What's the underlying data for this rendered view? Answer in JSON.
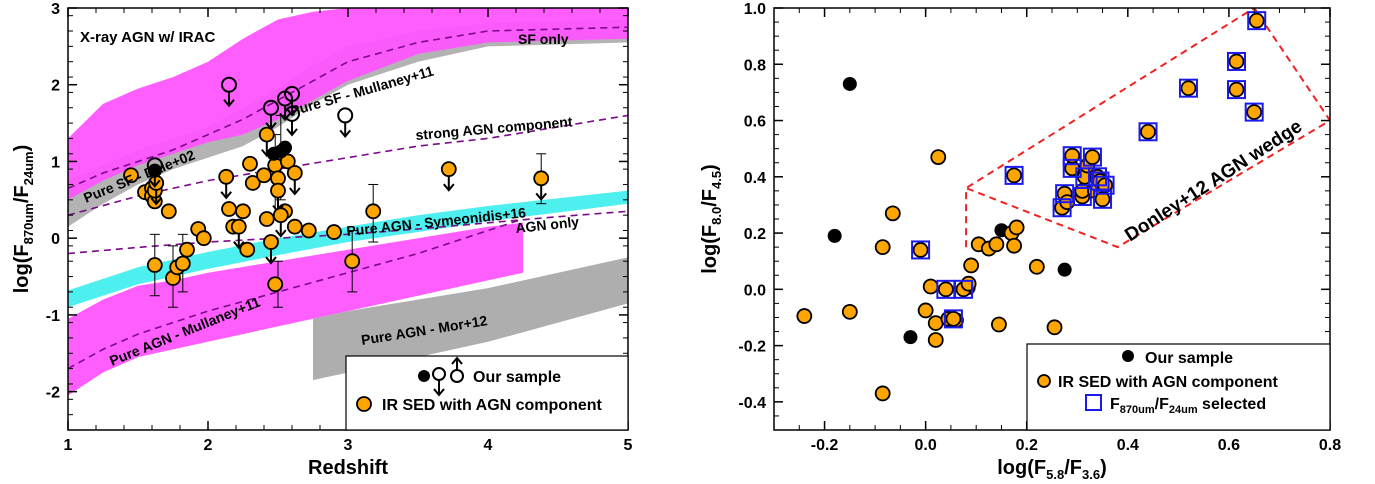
{
  "chart_data": [
    {
      "type": "scatter",
      "panel_label": "X-ray AGN w/ IRAC",
      "xlabel_main": "Redshift",
      "ylabel": {
        "main": "log(F",
        "sub1": "870um",
        "mid": "/F",
        "sub2": "24um",
        "end": ")"
      },
      "xlim": [
        1,
        5
      ],
      "ylim": [
        -2.5,
        3
      ],
      "xticks": [
        "1",
        "2",
        "3",
        "4",
        "5"
      ],
      "yticks": [
        "-2",
        "-1",
        "0",
        "1",
        "2",
        "3"
      ],
      "templates": [
        {
          "name": "Pure SF - Mullaney+11",
          "color": "#ff55ff",
          "z": [
            1.0,
            1.25,
            1.5,
            1.75,
            2.0,
            2.25,
            2.5,
            2.75,
            3.0,
            3.5,
            4.0,
            5.0
          ],
          "lo": [
            0.5,
            0.75,
            0.95,
            1.1,
            1.25,
            1.35,
            1.55,
            1.8,
            2.05,
            2.4,
            2.55,
            2.6
          ],
          "hi": [
            1.3,
            1.75,
            1.95,
            2.1,
            2.3,
            2.6,
            2.85,
            2.95,
            3.0,
            3.0,
            3.0,
            3.0
          ],
          "mid": [
            0.65,
            0.85,
            1.0,
            1.15,
            1.35,
            1.55,
            1.8,
            2.05,
            2.3,
            2.55,
            2.7,
            2.75
          ]
        },
        {
          "name": "Pure SF - Dale+02",
          "color": "#999999",
          "z": [
            1.0,
            1.25,
            1.5,
            1.75,
            2.0,
            2.25,
            2.5,
            2.75,
            3.0,
            3.5,
            4.0,
            5.0
          ],
          "lo": [
            0.15,
            0.45,
            0.7,
            0.9,
            1.05,
            1.2,
            1.45,
            1.75,
            2.0,
            2.3,
            2.5,
            2.55
          ],
          "hi": [
            0.75,
            0.95,
            1.15,
            1.3,
            1.45,
            1.7,
            1.95,
            2.25,
            2.5,
            2.7,
            2.8,
            2.85
          ]
        },
        {
          "name": "Pure AGN - Symeonidis+16",
          "color": "#44eeee",
          "z": [
            1.0,
            1.5,
            2.0,
            2.5,
            3.0,
            3.5,
            4.0,
            5.0
          ],
          "lo": [
            -0.9,
            -0.6,
            -0.4,
            -0.22,
            -0.05,
            0.08,
            0.22,
            0.45
          ],
          "hi": [
            -0.68,
            -0.38,
            -0.18,
            0.0,
            0.15,
            0.3,
            0.42,
            0.62
          ]
        },
        {
          "name": "Pure AGN - Mullaney+11",
          "color": "#ff55ff",
          "z": [
            1.0,
            1.25,
            1.5,
            1.75,
            2.0,
            2.5,
            3.0,
            3.5,
            4.0,
            4.25
          ],
          "lo": [
            -2.05,
            -1.75,
            -1.55,
            -1.45,
            -1.35,
            -1.15,
            -0.95,
            -0.75,
            -0.55,
            -0.45
          ],
          "hi": [
            -1.05,
            -0.8,
            -0.62,
            -0.55,
            -0.45,
            -0.3,
            -0.15,
            0.0,
            0.15,
            0.2
          ],
          "mid": [
            -1.7,
            -1.45,
            -1.25,
            -1.1,
            -0.95,
            -0.7,
            -0.45,
            -0.2,
            0.1,
            0.25
          ]
        },
        {
          "name": "Pure AGN - Mor+12",
          "color": "#aaaaaa",
          "z": [
            2.75,
            3.0,
            3.5,
            4.0,
            4.5,
            5.0
          ],
          "lo": [
            -1.85,
            -1.75,
            -1.55,
            -1.35,
            -1.1,
            -0.85
          ],
          "hi": [
            -1.05,
            -0.95,
            -0.8,
            -0.65,
            -0.45,
            -0.25
          ]
        },
        {
          "name": "strong AGN component",
          "z": [
            1.0,
            1.5,
            2.0,
            2.5,
            3.0,
            3.5,
            4.0,
            4.5,
            5.0
          ],
          "y": [
            0.3,
            0.55,
            0.75,
            0.9,
            1.05,
            1.2,
            1.3,
            1.45,
            1.6
          ]
        },
        {
          "name": "AGN only",
          "z": [
            1.0,
            1.5,
            2.0,
            2.5,
            3.0,
            3.5,
            4.0,
            4.5,
            5.0
          ],
          "y": [
            -0.2,
            -0.12,
            -0.05,
            0.0,
            0.05,
            0.12,
            0.2,
            0.28,
            0.35
          ]
        }
      ],
      "annotations": [
        "SF only",
        "Pure SF - Mullaney+11",
        "strong AGN component",
        "Pure SF - Dale+02",
        "Pure AGN - Symeonidis+16",
        "AGN only",
        "Pure AGN - Mullaney+11",
        "Pure AGN - Mor+12"
      ],
      "series": [
        {
          "name": "Our sample",
          "marker": "filled-black",
          "points": [
            [
              1.62,
              0.88
            ],
            [
              2.47,
              1.1
            ],
            [
              2.52,
              1.13
            ],
            [
              2.55,
              1.18
            ]
          ]
        },
        {
          "name": "Our sample (upper limits)",
          "marker": "open-circle-down",
          "points": [
            [
              1.62,
              0.95
            ],
            [
              2.15,
              2.0
            ],
            [
              2.45,
              1.7
            ],
            [
              2.55,
              1.82
            ],
            [
              2.6,
              1.88
            ],
            [
              2.6,
              1.62
            ],
            [
              2.98,
              1.6
            ]
          ]
        },
        {
          "name": "IR SED with AGN component",
          "marker": "filled-orange",
          "points": [
            [
              1.45,
              0.82
            ],
            [
              1.55,
              0.6
            ],
            [
              1.6,
              0.65
            ],
            [
              1.6,
              0.55
            ],
            [
              1.62,
              0.48
            ],
            [
              1.62,
              0.62
            ],
            [
              1.72,
              0.35
            ],
            [
              1.75,
              -0.52
            ],
            [
              1.78,
              -0.38
            ],
            [
              1.82,
              -0.33
            ],
            [
              1.85,
              -0.15
            ],
            [
              1.93,
              0.12
            ],
            [
              1.97,
              0.0
            ],
            [
              2.15,
              0.38
            ],
            [
              2.18,
              0.15
            ],
            [
              2.25,
              0.35
            ],
            [
              2.3,
              0.97
            ],
            [
              2.32,
              0.72
            ],
            [
              2.4,
              0.82
            ],
            [
              2.42,
              0.25
            ],
            [
              2.48,
              0.95
            ],
            [
              2.5,
              0.78
            ],
            [
              2.55,
              0.35
            ],
            [
              2.57,
              1.0
            ],
            [
              2.62,
              0.15
            ],
            [
              2.72,
              0.1
            ],
            [
              2.9,
              0.08
            ],
            [
              3.18,
              0.35
            ],
            [
              1.62,
              -0.35
            ],
            [
              2.28,
              -0.15
            ],
            [
              2.48,
              -0.6
            ],
            [
              3.03,
              -0.3
            ]
          ],
          "errors_y": [
            [
              1.62,
              -0.75,
              0.05
            ],
            [
              1.75,
              -0.9,
              -0.1
            ],
            [
              1.82,
              -0.7,
              0.05
            ],
            [
              2.48,
              0.25,
              1.35
            ],
            [
              2.52,
              0.5,
              1.6
            ],
            [
              2.5,
              -0.9,
              -0.3
            ],
            [
              3.03,
              -0.7,
              0.1
            ],
            [
              3.18,
              -0.05,
              0.7
            ],
            [
              4.38,
              0.45,
              1.1
            ]
          ]
        },
        {
          "name": "IR SED with AGN component (upper limits)",
          "marker": "orange-down",
          "points": [
            [
              1.63,
              0.72
            ],
            [
              2.13,
              0.8
            ],
            [
              2.42,
              1.35
            ],
            [
              2.5,
              0.62
            ],
            [
              2.52,
              0.3
            ],
            [
              2.62,
              0.85
            ],
            [
              3.72,
              0.9
            ],
            [
              4.38,
              0.78
            ],
            [
              2.22,
              0.15
            ],
            [
              2.45,
              -0.05
            ]
          ]
        }
      ],
      "legend": {
        "placement": "bottom-right",
        "entries": [
          "Our sample",
          "IR SED with AGN component"
        ]
      }
    },
    {
      "type": "scatter",
      "xlim": [
        -0.3,
        0.8
      ],
      "ylim": [
        -0.5,
        1.0
      ],
      "xticks": [
        "-0.2",
        "0.0",
        "0.2",
        "0.4",
        "0.6",
        "0.8"
      ],
      "yticks": [
        "-0.4",
        "-0.2",
        "0.0",
        "0.2",
        "0.4",
        "0.6",
        "0.8",
        "1.0"
      ],
      "xlabel": {
        "main": "log(F",
        "sub1": "5.8",
        "mid": "/F",
        "sub2": "3.6",
        "end": ")"
      },
      "ylabel": {
        "main": "log(F",
        "sub1": "8.0",
        "mid": "/F",
        "sub2": "4.5",
        "end": ")"
      },
      "wedge": {
        "name": "Donley+12 AGN wedge",
        "color": "#ee2222",
        "x": [
          0.08,
          0.08,
          0.38,
          0.8,
          0.65,
          0.08
        ],
        "y": [
          0.15,
          0.36,
          0.15,
          0.6,
          1.0,
          0.36
        ]
      },
      "series": [
        {
          "name": "Our sample",
          "marker": "filled-black",
          "points": [
            [
              -0.15,
              0.73
            ],
            [
              -0.18,
              0.19
            ],
            [
              -0.03,
              -0.17
            ],
            [
              0.085,
              0.005
            ],
            [
              0.15,
              0.21
            ],
            [
              0.275,
              0.07
            ]
          ]
        },
        {
          "name": "IR SED with AGN component",
          "marker": "filled-orange",
          "points": [
            [
              -0.24,
              -0.095
            ],
            [
              -0.15,
              -0.08
            ],
            [
              -0.085,
              -0.37
            ],
            [
              -0.085,
              0.15
            ],
            [
              -0.065,
              0.27
            ],
            [
              -0.01,
              0.14
            ],
            [
              0.0,
              -0.075
            ],
            [
              0.01,
              0.01
            ],
            [
              0.02,
              -0.12
            ],
            [
              0.02,
              -0.18
            ],
            [
              0.025,
              0.47
            ],
            [
              0.04,
              0.0
            ],
            [
              0.06,
              -0.11
            ],
            [
              0.075,
              0.0
            ],
            [
              0.085,
              0.02
            ],
            [
              0.09,
              0.085
            ],
            [
              0.105,
              0.16
            ],
            [
              0.125,
              0.145
            ],
            [
              0.14,
              0.16
            ],
            [
              0.145,
              -0.125
            ],
            [
              0.17,
              0.2
            ],
            [
              0.18,
              0.22
            ],
            [
              0.175,
              0.155
            ],
            [
              0.22,
              0.08
            ],
            [
              0.255,
              -0.135
            ],
            [
              0.175,
              0.405
            ],
            [
              0.27,
              0.29
            ],
            [
              0.275,
              0.34
            ],
            [
              0.28,
              0.31
            ],
            [
              0.29,
              0.43
            ],
            [
              0.29,
              0.475
            ],
            [
              0.31,
              0.33
            ],
            [
              0.31,
              0.35
            ],
            [
              0.315,
              0.4
            ],
            [
              0.32,
              0.44
            ],
            [
              0.33,
              0.47
            ],
            [
              0.335,
              0.35
            ],
            [
              0.34,
              0.4
            ],
            [
              0.345,
              0.385
            ],
            [
              0.35,
              0.32
            ],
            [
              0.355,
              0.37
            ],
            [
              0.44,
              0.56
            ],
            [
              0.52,
              0.715
            ],
            [
              0.615,
              0.81
            ],
            [
              0.615,
              0.71
            ],
            [
              0.65,
              0.63
            ],
            [
              0.655,
              0.955
            ],
            [
              0.045,
              -0.105
            ],
            [
              0.055,
              -0.105
            ]
          ]
        },
        {
          "name": "F870um/F24um selected",
          "marker": "blue-square",
          "points": [
            [
              -0.01,
              0.14
            ],
            [
              0.04,
              0.0
            ],
            [
              0.055,
              -0.105
            ],
            [
              0.075,
              0.0
            ],
            [
              0.175,
              0.405
            ],
            [
              0.27,
              0.29
            ],
            [
              0.275,
              0.34
            ],
            [
              0.29,
              0.43
            ],
            [
              0.29,
              0.475
            ],
            [
              0.31,
              0.33
            ],
            [
              0.315,
              0.4
            ],
            [
              0.33,
              0.47
            ],
            [
              0.34,
              0.4
            ],
            [
              0.345,
              0.385
            ],
            [
              0.35,
              0.32
            ],
            [
              0.355,
              0.37
            ],
            [
              0.44,
              0.56
            ],
            [
              0.52,
              0.715
            ],
            [
              0.615,
              0.81
            ],
            [
              0.615,
              0.71
            ],
            [
              0.65,
              0.63
            ],
            [
              0.655,
              0.955
            ]
          ]
        }
      ],
      "legend": {
        "placement": "bottom-right",
        "entries": [
          "Our sample",
          "IR SED with AGN component",
          {
            "main": "F",
            "sub1": "870um",
            "mid": "/F",
            "sub2": "24um",
            "end": " selected"
          }
        ]
      }
    }
  ]
}
